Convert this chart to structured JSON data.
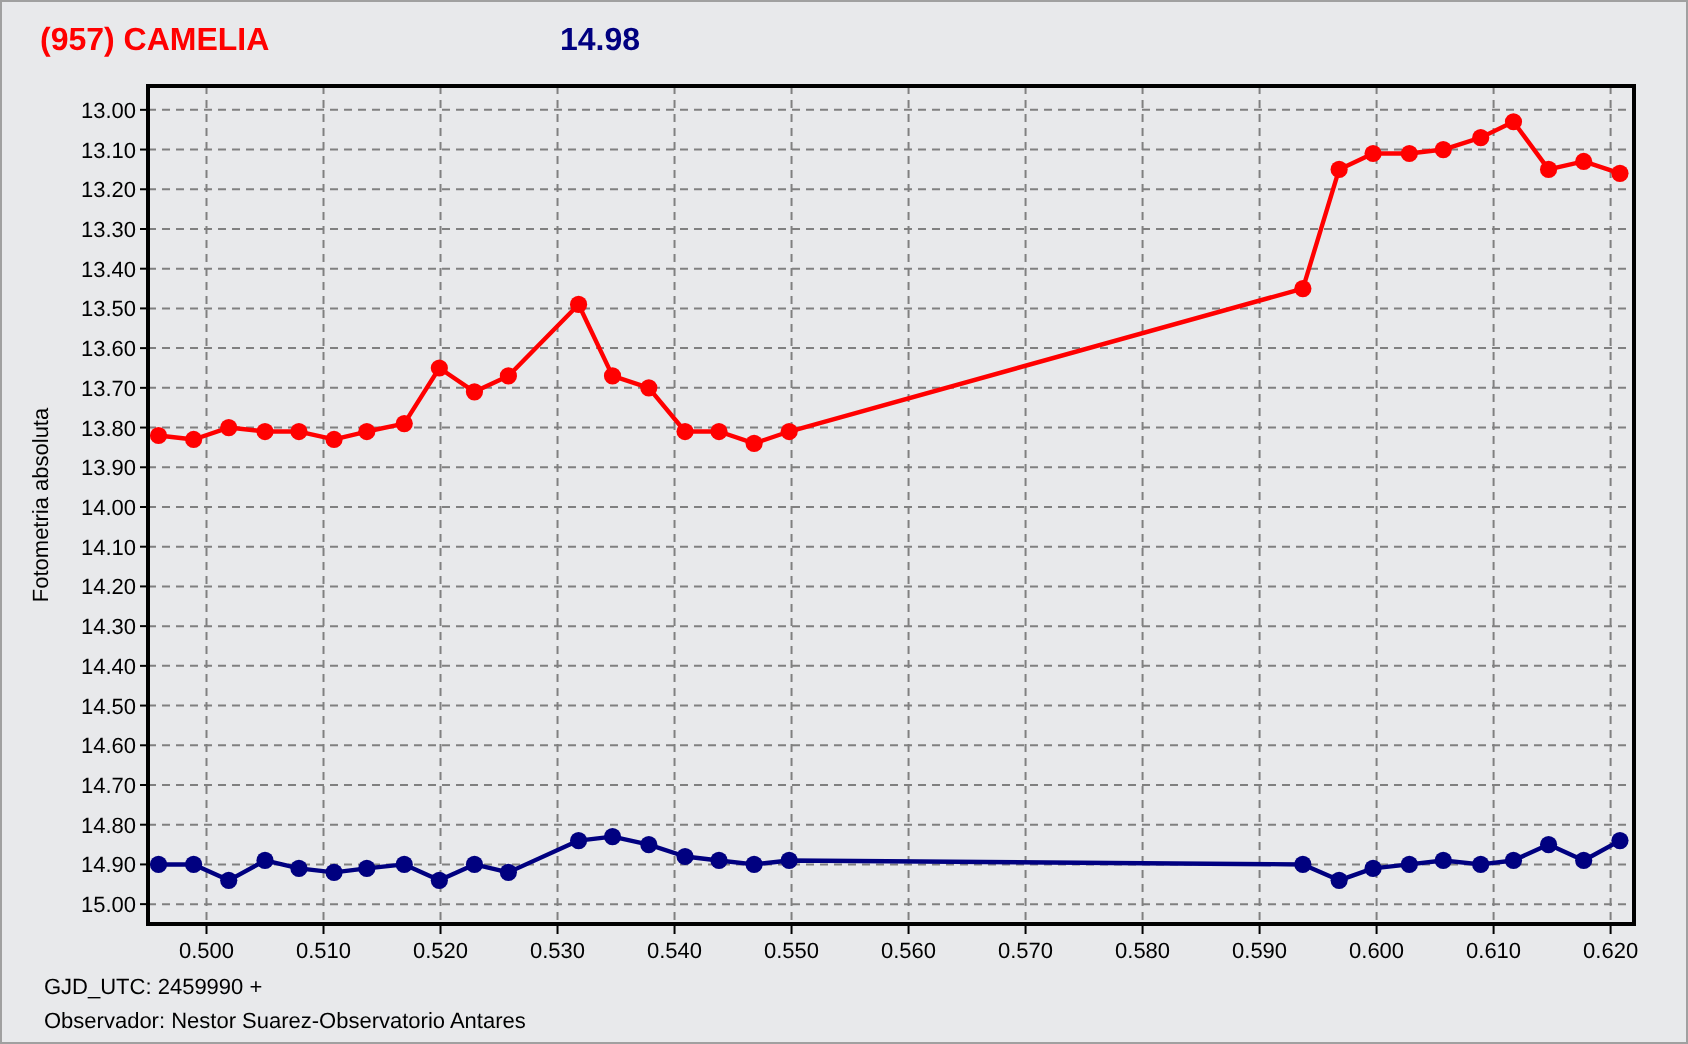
{
  "chart_data": {
    "type": "line",
    "title": "(957) CAMELIA",
    "subtitle": "14.98",
    "ylabel": "Fotometria absoluta",
    "annotations": [
      "GJD_UTC: 2459990 +",
      "Observador: Nestor Suarez-Observatorio Antares"
    ],
    "x": [
      0.4959,
      0.4989,
      0.5019,
      0.505,
      0.5079,
      0.5109,
      0.5137,
      0.5169,
      0.5199,
      0.5229,
      0.5258,
      0.5318,
      0.5347,
      0.5378,
      0.5409,
      0.5438,
      0.5468,
      0.5498,
      0.5937,
      0.5968,
      0.5997,
      0.6028,
      0.6057,
      0.6089,
      0.6117,
      0.6147,
      0.6177,
      0.6208
    ],
    "series": [
      {
        "color": "#ff0000",
        "values": [
          13.82,
          13.83,
          13.8,
          13.81,
          13.81,
          13.83,
          13.81,
          13.79,
          13.65,
          13.71,
          13.67,
          13.49,
          13.67,
          13.7,
          13.81,
          13.81,
          13.84,
          13.81,
          13.45,
          13.15,
          13.11,
          13.11,
          13.1,
          13.07,
          13.03,
          13.15,
          13.13,
          13.16
        ]
      },
      {
        "color": "#000080",
        "values": [
          14.9,
          14.9,
          14.94,
          14.89,
          14.91,
          14.92,
          14.91,
          14.9,
          14.94,
          14.9,
          14.92,
          14.84,
          14.83,
          14.85,
          14.88,
          14.89,
          14.9,
          14.89,
          14.9,
          14.94,
          14.91,
          14.9,
          14.89,
          14.9,
          14.89,
          14.85,
          14.89,
          14.84
        ]
      }
    ],
    "xlim": [
      0.495,
      0.622
    ],
    "ylim": [
      15.05,
      12.94
    ],
    "xticks": [
      {
        "value": 0.5,
        "label": "0.500"
      },
      {
        "value": 0.51,
        "label": "0.510"
      },
      {
        "value": 0.52,
        "label": "0.520"
      },
      {
        "value": 0.53,
        "label": "0.530"
      },
      {
        "value": 0.54,
        "label": "0.540"
      },
      {
        "value": 0.55,
        "label": "0.550"
      },
      {
        "value": 0.56,
        "label": "0.560"
      },
      {
        "value": 0.57,
        "label": "0.570"
      },
      {
        "value": 0.58,
        "label": "0.580"
      },
      {
        "value": 0.59,
        "label": "0.590"
      },
      {
        "value": 0.6,
        "label": "0.600"
      },
      {
        "value": 0.61,
        "label": "0.610"
      },
      {
        "value": 0.62,
        "label": "0.620"
      }
    ],
    "yticks": [
      {
        "value": 13,
        "label": "13.00"
      },
      {
        "value": 13.1,
        "label": "13.10"
      },
      {
        "value": 13.2,
        "label": "13.20"
      },
      {
        "value": 13.3,
        "label": "13.30"
      },
      {
        "value": 13.4,
        "label": "13.40"
      },
      {
        "value": 13.5,
        "label": "13.50"
      },
      {
        "value": 13.6,
        "label": "13.60"
      },
      {
        "value": 13.7,
        "label": "13.70"
      },
      {
        "value": 13.8,
        "label": "13.80"
      },
      {
        "value": 13.9,
        "label": "13.90"
      },
      {
        "value": 14,
        "label": "14.00"
      },
      {
        "value": 14.1,
        "label": "14.10"
      },
      {
        "value": 14.2,
        "label": "14.20"
      },
      {
        "value": 14.3,
        "label": "14.30"
      },
      {
        "value": 14.4,
        "label": "14.40"
      },
      {
        "value": 14.5,
        "label": "14.50"
      },
      {
        "value": 14.6,
        "label": "14.60"
      },
      {
        "value": 14.7,
        "label": "14.70"
      },
      {
        "value": 14.8,
        "label": "14.80"
      },
      {
        "value": 14.9,
        "label": "14.90"
      },
      {
        "value": 15,
        "label": "15.00"
      }
    ],
    "grid": true,
    "marker": "circle",
    "line_style": "solid"
  }
}
